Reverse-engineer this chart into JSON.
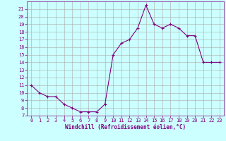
{
  "x": [
    0,
    1,
    2,
    3,
    4,
    5,
    6,
    7,
    8,
    9,
    10,
    11,
    12,
    13,
    14,
    15,
    16,
    17,
    18,
    19,
    20,
    21,
    22,
    23
  ],
  "y": [
    11,
    10,
    9.5,
    9.5,
    8.5,
    8,
    7.5,
    7.5,
    7.5,
    8.5,
    15,
    16.5,
    17,
    18.5,
    21.5,
    19,
    18.5,
    19,
    18.5,
    17.5,
    17.5,
    14,
    14,
    14
  ],
  "line_color": "#800080",
  "marker": "+",
  "bg_color": "#ccffff",
  "grid_color": "#aaaaaa",
  "xlabel": "Windchill (Refroidissement éolien,°C)",
  "xlim": [
    -0.5,
    23.5
  ],
  "ylim": [
    7,
    22
  ],
  "yticks": [
    7,
    8,
    9,
    10,
    11,
    12,
    13,
    14,
    15,
    16,
    17,
    18,
    19,
    20,
    21
  ],
  "xticks": [
    0,
    1,
    2,
    3,
    4,
    5,
    6,
    7,
    8,
    9,
    10,
    11,
    12,
    13,
    14,
    15,
    16,
    17,
    18,
    19,
    20,
    21,
    22,
    23
  ],
  "font_color": "#800080",
  "tick_fontsize": 5,
  "xlabel_fontsize": 5.5,
  "linewidth": 0.8,
  "markersize": 3,
  "markeredgewidth": 0.8
}
